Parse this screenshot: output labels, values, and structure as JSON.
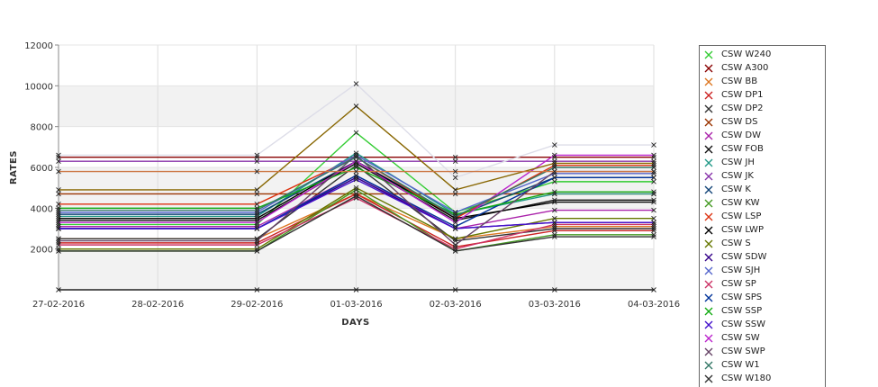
{
  "chart_data": {
    "type": "line",
    "xlabel": "DAYS",
    "ylabel": "RATES",
    "x": [
      "27-02-2016",
      "28-02-2016",
      "29-02-2016",
      "01-03-2016",
      "02-03-2016",
      "03-03-2016",
      "04-03-2016"
    ],
    "yticks": [
      2000,
      4000,
      6000,
      8000,
      10000,
      12000
    ],
    "ylim": [
      0,
      12000
    ],
    "legend_position": "right",
    "series": [
      {
        "name": "CSW  W240",
        "color": "#33cc33",
        "values": [
          3200,
          null,
          3200,
          7700,
          3800,
          5300,
          5300
        ]
      },
      {
        "name": "CSW A300",
        "color": "#880000",
        "values": [
          6500,
          null,
          6500,
          6500,
          6500,
          6500,
          6500
        ]
      },
      {
        "name": "CSW BB",
        "color": "#dd7722",
        "values": [
          2500,
          null,
          2500,
          4700,
          2500,
          3100,
          3100
        ]
      },
      {
        "name": "CSW DP1",
        "color": "#cc2222",
        "values": [
          2300,
          null,
          2300,
          4700,
          2100,
          2900,
          2900
        ]
      },
      {
        "name": "CSW DP2",
        "color": "#333333",
        "values": [
          2500,
          null,
          2500,
          6100,
          2400,
          3000,
          3000
        ]
      },
      {
        "name": "CSW DS",
        "color": "#993300",
        "values": [
          4700,
          null,
          4700,
          4700,
          4700,
          4700,
          4700
        ]
      },
      {
        "name": "CSW DW",
        "color": "#aa22aa",
        "values": [
          3100,
          null,
          3100,
          5600,
          3000,
          3900,
          3900
        ]
      },
      {
        "name": "CSW FOB",
        "color": "#111111",
        "values": [
          3400,
          null,
          3400,
          6200,
          3400,
          4400,
          4400
        ]
      },
      {
        "name": "CSW JH",
        "color": "#229988",
        "values": [
          3600,
          null,
          3600,
          6700,
          3700,
          4700,
          4700
        ]
      },
      {
        "name": "CSW JK",
        "color": "#8833aa",
        "values": [
          6300,
          null,
          6300,
          6300,
          6300,
          6300,
          6300
        ]
      },
      {
        "name": "CSW K",
        "color": "#114477",
        "values": [
          3700,
          null,
          3700,
          6300,
          3600,
          5500,
          5500
        ]
      },
      {
        "name": "CSW KW",
        "color": "#449922",
        "values": [
          1900,
          null,
          1900,
          4900,
          1900,
          2700,
          2700
        ]
      },
      {
        "name": "CSW LSP",
        "color": "#dd3311",
        "values": [
          4200,
          null,
          4200,
          6500,
          3500,
          6100,
          6100
        ]
      },
      {
        "name": "CSW LWP",
        "color": "#000000",
        "values": [
          3500,
          null,
          3500,
          6300,
          3500,
          4300,
          4300
        ]
      },
      {
        "name": "CSW S",
        "color": "#667700",
        "values": [
          2000,
          null,
          2000,
          5000,
          2500,
          3500,
          3500
        ]
      },
      {
        "name": "CSW SDW",
        "color": "#330088",
        "values": [
          3000,
          null,
          3000,
          5500,
          3000,
          3300,
          3300
        ]
      },
      {
        "name": "CSW SJH",
        "color": "#5566cc",
        "values": [
          3800,
          null,
          3800,
          6600,
          3800,
          5700,
          5700
        ]
      },
      {
        "name": "CSW SP",
        "color": "#cc3366",
        "values": [
          2200,
          null,
          2200,
          4500,
          2000,
          3200,
          3200
        ]
      },
      {
        "name": "CSW SPS",
        "color": "#003399",
        "values": [
          3000,
          null,
          3000,
          5600,
          3100,
          5500,
          5500
        ]
      },
      {
        "name": "CSW SSP",
        "color": "#11aa11",
        "values": [
          4000,
          null,
          4000,
          6000,
          3700,
          4800,
          4800
        ]
      },
      {
        "name": "CSW SSW",
        "color": "#4411cc",
        "values": [
          3000,
          null,
          3000,
          5400,
          3000,
          3300,
          3300
        ]
      },
      {
        "name": "CSW SW",
        "color": "#bb22cc",
        "values": [
          3300,
          null,
          3300,
          6300,
          3300,
          6600,
          6600
        ]
      },
      {
        "name": "CSW SWP",
        "color": "#664466",
        "values": [
          2400,
          null,
          2400,
          6600,
          2200,
          5800,
          5800
        ]
      },
      {
        "name": "CSW W1",
        "color": "#337766",
        "values": [
          3900,
          null,
          3900,
          6500,
          3600,
          6000,
          6000
        ]
      },
      {
        "name": "CSW W180",
        "color": "#333333",
        "values": [
          1900,
          null,
          1900,
          4600,
          1900,
          2600,
          2600
        ]
      },
      {
        "name": "",
        "color": "#dddde8",
        "values": [
          6600,
          null,
          6600,
          10100,
          5500,
          7100,
          7100
        ]
      },
      {
        "name": "",
        "color": "#886600",
        "values": [
          4900,
          null,
          4900,
          9000,
          4900,
          6200,
          6200
        ]
      },
      {
        "name": "",
        "color": "#cc7744",
        "values": [
          5800,
          null,
          5800,
          5800,
          5800,
          5800,
          5800
        ]
      },
      {
        "name": "",
        "color": "#222222",
        "values": [
          0,
          null,
          0,
          0,
          0,
          0,
          0
        ]
      }
    ]
  }
}
